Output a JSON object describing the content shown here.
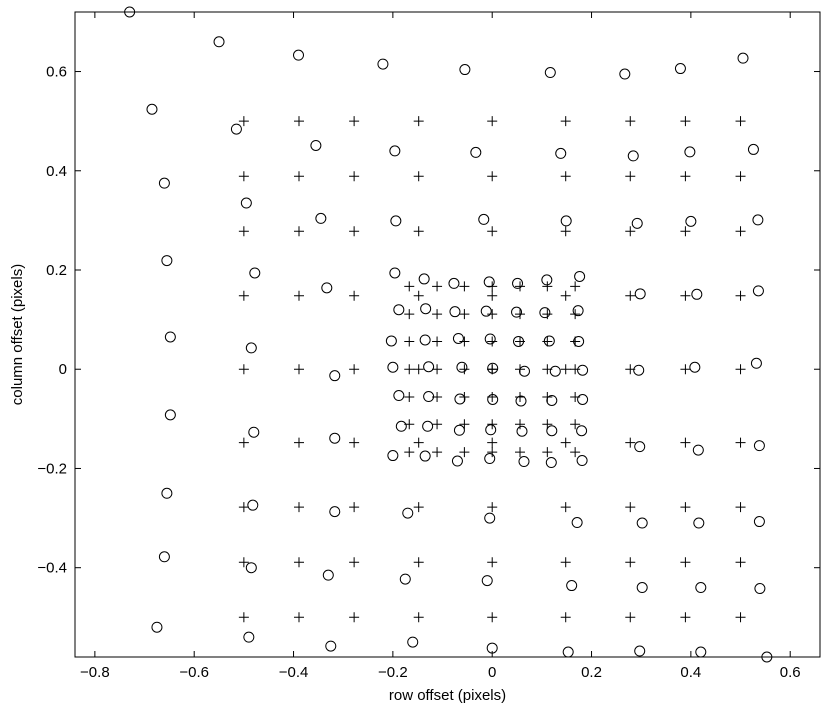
{
  "chart_data": {
    "type": "scatter",
    "title": "",
    "xlabel": "row offset (pixels)",
    "ylabel": "column offset (pixels)",
    "xlim": [
      -0.84,
      0.66
    ],
    "ylim": [
      -0.58,
      0.72
    ],
    "x_ticks": [
      -0.8,
      -0.6,
      -0.4,
      -0.2,
      0,
      0.2,
      0.4,
      0.6
    ],
    "x_tick_labels": [
      "−0.8",
      "−0.6",
      "−0.4",
      "−0.2",
      "0",
      "0.2",
      "0.4",
      "0.6"
    ],
    "y_ticks": [
      -0.4,
      -0.2,
      0,
      0.2,
      0.4,
      0.6
    ],
    "y_tick_labels": [
      "−0.4",
      "−0.2",
      "0",
      "0.2",
      "0.4",
      "0.6"
    ],
    "grid": false,
    "legend": "none",
    "series": [
      {
        "marker": "plus",
        "outer_x": [
          -0.5,
          -0.389,
          -0.278,
          -0.148,
          0,
          0.148,
          0.278,
          0.389,
          0.5
        ],
        "outer_y": [
          0.5,
          0.389,
          0.278,
          0.148,
          0,
          -0.148,
          -0.278,
          -0.389,
          -0.5
        ],
        "inner_x": [
          -0.167,
          -0.111,
          -0.056,
          0,
          0.056,
          0.111,
          0.167
        ],
        "inner_y": [
          0.167,
          0.111,
          0.056,
          0,
          -0.056,
          -0.111,
          -0.167
        ]
      },
      {
        "marker": "circle",
        "points": [
          [
            -0.73,
            0.72
          ],
          [
            -0.55,
            0.66
          ],
          [
            -0.39,
            0.633
          ],
          [
            -0.22,
            0.615
          ],
          [
            -0.055,
            0.604
          ],
          [
            0.117,
            0.598
          ],
          [
            0.267,
            0.595
          ],
          [
            0.379,
            0.606
          ],
          [
            0.505,
            0.627
          ],
          [
            -0.685,
            0.524
          ],
          [
            -0.515,
            0.484
          ],
          [
            -0.355,
            0.451
          ],
          [
            -0.196,
            0.44
          ],
          [
            -0.033,
            0.437
          ],
          [
            0.138,
            0.435
          ],
          [
            0.284,
            0.43
          ],
          [
            0.398,
            0.438
          ],
          [
            0.526,
            0.443
          ],
          [
            -0.66,
            0.375
          ],
          [
            -0.495,
            0.335
          ],
          [
            -0.345,
            0.304
          ],
          [
            -0.194,
            0.299
          ],
          [
            -0.017,
            0.302
          ],
          [
            0.149,
            0.299
          ],
          [
            0.292,
            0.294
          ],
          [
            0.4,
            0.298
          ],
          [
            0.535,
            0.301
          ],
          [
            -0.655,
            0.219
          ],
          [
            -0.478,
            0.194
          ],
          [
            -0.333,
            0.164
          ],
          [
            -0.196,
            0.194
          ],
          [
            -0.137,
            0.182
          ],
          [
            -0.077,
            0.173
          ],
          [
            -0.006,
            0.176
          ],
          [
            0.051,
            0.173
          ],
          [
            0.11,
            0.18
          ],
          [
            0.176,
            0.187
          ],
          [
            0.298,
            0.152
          ],
          [
            0.412,
            0.151
          ],
          [
            0.536,
            0.158
          ],
          [
            -0.188,
            0.12
          ],
          [
            -0.134,
            0.122
          ],
          [
            -0.075,
            0.116
          ],
          [
            -0.012,
            0.117
          ],
          [
            0.049,
            0.115
          ],
          [
            0.106,
            0.114
          ],
          [
            0.173,
            0.118
          ],
          [
            -0.648,
            0.065
          ],
          [
            -0.485,
            0.043
          ],
          [
            -0.203,
            0.057
          ],
          [
            -0.135,
            0.059
          ],
          [
            -0.068,
            0.062
          ],
          [
            -0.004,
            0.061
          ],
          [
            0.053,
            0.056
          ],
          [
            0.115,
            0.057
          ],
          [
            0.174,
            0.056
          ],
          [
            -0.2,
            0.004
          ],
          [
            -0.128,
            0.005
          ],
          [
            -0.061,
            0.004
          ],
          [
            0.001,
            0.002
          ],
          [
            0.065,
            -0.004
          ],
          [
            0.127,
            -0.004
          ],
          [
            0.182,
            -0.002
          ],
          [
            0.295,
            -0.002
          ],
          [
            0.408,
            0.004
          ],
          [
            0.532,
            0.012
          ],
          [
            -0.317,
            -0.013
          ],
          [
            -0.188,
            -0.053
          ],
          [
            -0.128,
            -0.055
          ],
          [
            -0.065,
            -0.06
          ],
          [
            0.001,
            -0.061
          ],
          [
            0.058,
            -0.064
          ],
          [
            0.12,
            -0.063
          ],
          [
            0.182,
            -0.061
          ],
          [
            -0.648,
            -0.092
          ],
          [
            -0.183,
            -0.115
          ],
          [
            -0.13,
            -0.115
          ],
          [
            -0.066,
            -0.123
          ],
          [
            -0.003,
            -0.122
          ],
          [
            0.06,
            -0.125
          ],
          [
            0.12,
            -0.124
          ],
          [
            0.18,
            -0.124
          ],
          [
            -0.48,
            -0.127
          ],
          [
            -0.317,
            -0.139
          ],
          [
            -0.2,
            -0.174
          ],
          [
            -0.135,
            -0.175
          ],
          [
            -0.07,
            -0.185
          ],
          [
            -0.005,
            -0.18
          ],
          [
            0.064,
            -0.186
          ],
          [
            0.119,
            -0.188
          ],
          [
            0.181,
            -0.184
          ],
          [
            0.297,
            -0.156
          ],
          [
            0.415,
            -0.163
          ],
          [
            0.538,
            -0.154
          ],
          [
            -0.655,
            -0.25
          ],
          [
            -0.482,
            -0.274
          ],
          [
            -0.317,
            -0.287
          ],
          [
            -0.17,
            -0.29
          ],
          [
            -0.005,
            -0.3
          ],
          [
            0.171,
            -0.309
          ],
          [
            0.302,
            -0.31
          ],
          [
            0.416,
            -0.31
          ],
          [
            0.538,
            -0.307
          ],
          [
            -0.66,
            -0.378
          ],
          [
            -0.485,
            -0.4
          ],
          [
            -0.33,
            -0.415
          ],
          [
            -0.175,
            -0.423
          ],
          [
            -0.01,
            -0.426
          ],
          [
            0.16,
            -0.436
          ],
          [
            0.302,
            -0.44
          ],
          [
            0.42,
            -0.44
          ],
          [
            0.539,
            -0.442
          ],
          [
            -0.675,
            -0.52
          ],
          [
            -0.49,
            -0.54
          ],
          [
            -0.325,
            -0.558
          ],
          [
            -0.16,
            -0.55
          ],
          [
            0.0,
            -0.562
          ],
          [
            0.153,
            -0.57
          ],
          [
            0.297,
            -0.568
          ],
          [
            0.42,
            -0.57
          ],
          [
            0.553,
            -0.58
          ]
        ]
      }
    ]
  }
}
